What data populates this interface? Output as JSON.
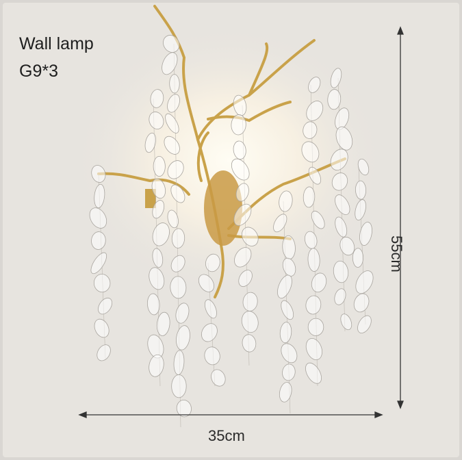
{
  "product": {
    "title": "Wall lamp",
    "bulb_spec": "G9*3",
    "width_label": "35cm",
    "height_label": "55cm"
  },
  "colors": {
    "background": "#e7e4df",
    "gold": "#c9a24a",
    "text": "#1e1e1e"
  }
}
